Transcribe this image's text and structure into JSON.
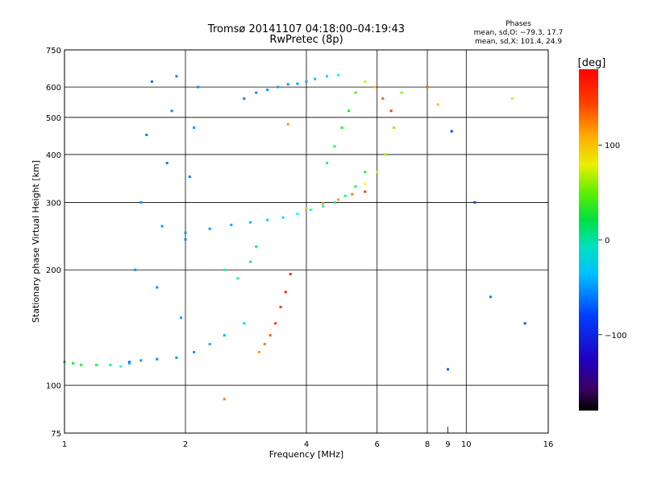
{
  "chart_data": {
    "type": "scatter",
    "title": "Tromsø 20141107 04:18:00–04:19:43",
    "subtitle": "RwPretec (8p)",
    "xlabel": "Frequency [MHz]",
    "ylabel": "Stationary phase Virtual Height [km]",
    "x_scale": "log",
    "y_scale": "log",
    "xlim": [
      1,
      16
    ],
    "ylim": [
      75,
      750
    ],
    "x_ticks": [
      1,
      2,
      4,
      6,
      8,
      10,
      16
    ],
    "x_tick_labels": [
      "1",
      "2",
      "4",
      "6",
      "8",
      "10",
      "16"
    ],
    "x_minor_ticks": [
      9
    ],
    "x_minor_tick_labels": [
      "9"
    ],
    "y_ticks": [
      75,
      100,
      200,
      300,
      400,
      500,
      600,
      750
    ],
    "y_tick_labels": [
      "75",
      "100",
      "200",
      "300",
      "400",
      "500",
      "600",
      "750"
    ],
    "grid": true,
    "stats": {
      "title": "Phases",
      "line_o": "mean, sd,O: −79.3, 17.7",
      "line_x": "mean, sd,X: 101.4, 24.9"
    },
    "colorbar": {
      "unit_label": "[deg]",
      "range": [
        -180,
        180
      ],
      "ticks": [
        100,
        0,
        -100
      ],
      "tick_labels": [
        "100",
        "0",
        "−100"
      ],
      "colormap": "rainbow"
    },
    "series": [
      {
        "x": [
          1.0,
          1.05,
          1.1,
          1.2,
          1.3,
          1.38,
          1.45,
          1.55,
          1.7,
          1.9,
          2.1,
          2.3,
          2.5,
          2.8
        ],
        "y": [
          115,
          114,
          113,
          113,
          113,
          112,
          114,
          116,
          117,
          118,
          122,
          128,
          135,
          145
        ],
        "phase": [
          10,
          10,
          5,
          0,
          -20,
          -60,
          -80,
          -90,
          -95,
          -95,
          -90,
          -85,
          -80,
          -70
        ]
      },
      {
        "x": [
          1.45,
          1.5,
          1.55,
          1.6,
          1.65,
          1.7,
          1.75,
          1.8,
          1.85,
          1.9,
          1.95,
          2.0,
          2.05,
          2.1,
          2.15
        ],
        "y": [
          115,
          200,
          300,
          450,
          620,
          180,
          260,
          380,
          520,
          640,
          150,
          240,
          350,
          470,
          600
        ],
        "phase": [
          -100,
          -95,
          -90,
          -100,
          -105,
          -95,
          -90,
          -100,
          -95,
          -100,
          -90,
          -95,
          -100,
          -90,
          -95
        ]
      },
      {
        "x": [
          2.0,
          2.3,
          2.6,
          2.9,
          3.2,
          3.5,
          3.8,
          4.1,
          4.4,
          4.7,
          5.0,
          5.3,
          5.6
        ],
        "y": [
          250,
          256,
          262,
          266,
          270,
          274,
          280,
          287,
          293,
          300,
          312,
          330,
          360
        ],
        "phase": [
          -95,
          -90,
          -85,
          -80,
          -75,
          -70,
          -60,
          -50,
          -40,
          -30,
          -20,
          -10,
          0
        ]
      },
      {
        "x": [
          4.0,
          4.4,
          4.8,
          5.2,
          5.6,
          6.0,
          6.3,
          6.6,
          6.9
        ],
        "y": [
          290,
          298,
          305,
          315,
          335,
          360,
          400,
          470,
          580
        ],
        "phase": [
          120,
          125,
          130,
          140,
          100,
          80,
          70,
          60,
          60
        ]
      },
      {
        "x": [
          4.5,
          4.7,
          4.9,
          5.1,
          5.3,
          5.6,
          5.9,
          6.2,
          6.5
        ],
        "y": [
          380,
          420,
          470,
          520,
          580,
          620,
          600,
          560,
          520
        ],
        "phase": [
          -20,
          -10,
          0,
          20,
          40,
          80,
          120,
          150,
          160
        ]
      },
      {
        "x": [
          2.8,
          3.0,
          3.2,
          3.4,
          3.6,
          3.8,
          4.0,
          4.2,
          4.5,
          4.8
        ],
        "y": [
          560,
          580,
          590,
          600,
          610,
          612,
          620,
          630,
          640,
          645
        ],
        "phase": [
          -100,
          -95,
          -95,
          -90,
          -90,
          -90,
          -85,
          -80,
          -70,
          -60
        ]
      },
      {
        "x": [
          3.05,
          3.15,
          3.25,
          3.35,
          3.45,
          3.55,
          3.65
        ],
        "y": [
          122,
          128,
          135,
          145,
          160,
          175,
          195
        ],
        "phase": [
          130,
          140,
          150,
          160,
          165,
          170,
          170
        ]
      },
      {
        "x": [
          2.5,
          2.7,
          2.9,
          3.0
        ],
        "y": [
          200,
          190,
          210,
          230
        ],
        "phase": [
          -30,
          -20,
          -10,
          -5
        ]
      },
      {
        "x": [
          8.0,
          8.5,
          9.2,
          10.5,
          11.5,
          13.0,
          14.0,
          2.5,
          5.6,
          9.0,
          3.6
        ],
        "y": [
          600,
          540,
          460,
          300,
          170,
          560,
          145,
          92,
          320,
          110,
          480
        ],
        "phase": [
          150,
          120,
          -120,
          -120,
          -100,
          80,
          -110,
          140,
          160,
          -110,
          130
        ]
      }
    ]
  }
}
